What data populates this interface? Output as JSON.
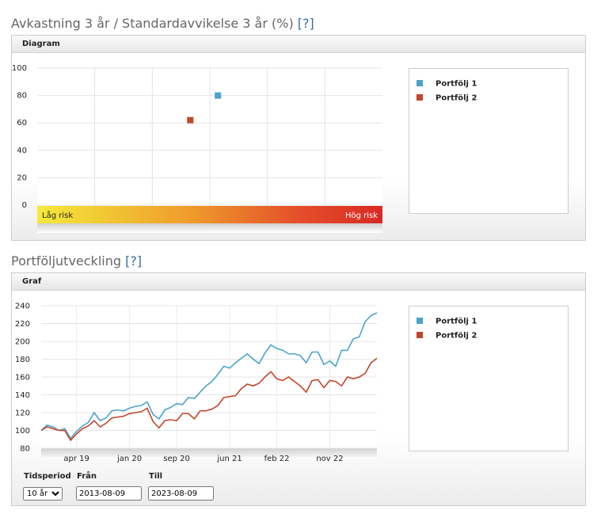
{
  "sections": [
    {
      "title": "Avkastning 3 år / Standardavvikelse 3 år (%)",
      "help": "[?]",
      "panel": "Diagram"
    },
    {
      "title": "Portföljutveckling",
      "help": "[?]",
      "panel": "Graf"
    }
  ],
  "chart_data": [
    {
      "type": "scatter",
      "ylim": [
        0,
        100
      ],
      "yticks": [
        0,
        20,
        40,
        60,
        80,
        100
      ],
      "xlim": [
        0,
        30
      ],
      "grid": true,
      "band_labels": [
        "Låg risk",
        "Hög risk"
      ],
      "series": [
        {
          "name": "Portfölj 1",
          "color": "#4ba3cc",
          "x": [
            15.7
          ],
          "values": [
            80
          ]
        },
        {
          "name": "Portfölj 2",
          "color": "#c2462a",
          "x": [
            13.3
          ],
          "values": [
            62
          ]
        }
      ]
    },
    {
      "type": "line",
      "categories": [
        null,
        null,
        null,
        null,
        null,
        null,
        "apr 19",
        null,
        null,
        null,
        null,
        null,
        null,
        null,
        null,
        "jan 20",
        null,
        null,
        null,
        null,
        null,
        null,
        null,
        "sep 20",
        null,
        null,
        null,
        null,
        null,
        null,
        null,
        null,
        "jun 21",
        null,
        null,
        null,
        null,
        null,
        null,
        null,
        "feb 22",
        null,
        null,
        null,
        null,
        null,
        null,
        null,
        null,
        "nov 22",
        null,
        null,
        null,
        null,
        null,
        null,
        null,
        null
      ],
      "ylim": [
        80,
        240
      ],
      "yticks": [
        80,
        100,
        120,
        140,
        160,
        180,
        200,
        220,
        240
      ],
      "grid": true,
      "series": [
        {
          "name": "Portfölj 1",
          "color": "#4ba3cc",
          "values": [
            100,
            106,
            104,
            100,
            102,
            91,
            99,
            105,
            109,
            120,
            111,
            114,
            122,
            123,
            122,
            125,
            127,
            128,
            132,
            118,
            113,
            123,
            126,
            130,
            129,
            137,
            136,
            143,
            150,
            155,
            163,
            172,
            170,
            176,
            181,
            186,
            180,
            175,
            187,
            196,
            192,
            190,
            186,
            186,
            184,
            176,
            188,
            188,
            174,
            178,
            172,
            190,
            190,
            203,
            205,
            222,
            229,
            232
          ]
        },
        {
          "name": "Portfölj 2",
          "color": "#c2462a",
          "values": [
            100,
            104,
            102,
            100,
            100,
            89,
            96,
            102,
            105,
            111,
            104,
            108,
            114,
            115,
            116,
            119,
            120,
            121,
            125,
            110,
            103,
            111,
            112,
            111,
            119,
            119,
            113,
            122,
            122,
            124,
            128,
            137,
            138,
            139,
            147,
            152,
            150,
            153,
            160,
            166,
            158,
            156,
            160,
            155,
            150,
            143,
            156,
            157,
            148,
            156,
            155,
            150,
            160,
            158,
            160,
            164,
            176,
            181
          ]
        }
      ]
    }
  ],
  "form": {
    "period_label": "Tidsperiod",
    "period": "10 år",
    "from_label": "Från",
    "from": "2013-08-09",
    "to_label": "Till",
    "to": "2023-08-09"
  }
}
